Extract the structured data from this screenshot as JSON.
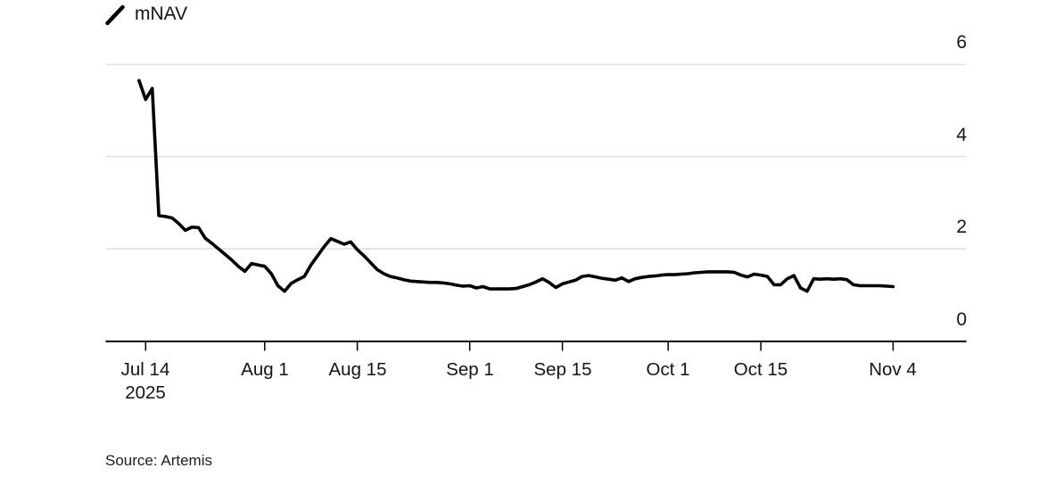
{
  "legend": {
    "series_label": "mNAV"
  },
  "source": {
    "text": "Source: Artemis"
  },
  "colors": {
    "line": "#000000",
    "grid": "#e0e0e0",
    "axis": "#000000",
    "text": "#141414"
  },
  "chart_data": {
    "type": "line",
    "title": "",
    "ylabel": "",
    "xlabel": "",
    "y_axis_side": "right",
    "legend_position": "top-left",
    "grid": "horizontal",
    "ylim": [
      0,
      6.2
    ],
    "x_range": [
      "2025-07-13",
      "2025-11-04"
    ],
    "y_ticks": [
      0,
      2,
      4,
      6
    ],
    "x_ticks": [
      {
        "date": "2025-07-14",
        "label": "Jul 14",
        "sublabel": "2025"
      },
      {
        "date": "2025-08-01",
        "label": "Aug 1"
      },
      {
        "date": "2025-08-15",
        "label": "Aug 15"
      },
      {
        "date": "2025-09-01",
        "label": "Sep 1"
      },
      {
        "date": "2025-09-15",
        "label": "Sep 15"
      },
      {
        "date": "2025-10-01",
        "label": "Oct 1"
      },
      {
        "date": "2025-10-15",
        "label": "Oct 15"
      },
      {
        "date": "2025-11-04",
        "label": "Nov 4"
      }
    ],
    "series": [
      {
        "name": "mNAV",
        "color": "#000000",
        "points": [
          [
            "2025-07-13",
            5.65
          ],
          [
            "2025-07-14",
            5.24
          ],
          [
            "2025-07-15",
            5.48
          ],
          [
            "2025-07-16",
            2.72
          ],
          [
            "2025-07-17",
            2.7
          ],
          [
            "2025-07-18",
            2.67
          ],
          [
            "2025-07-19",
            2.55
          ],
          [
            "2025-07-20",
            2.4
          ],
          [
            "2025-07-21",
            2.47
          ],
          [
            "2025-07-22",
            2.46
          ],
          [
            "2025-07-23",
            2.23
          ],
          [
            "2025-07-24",
            2.12
          ],
          [
            "2025-07-25",
            2.0
          ],
          [
            "2025-07-26",
            1.88
          ],
          [
            "2025-07-27",
            1.76
          ],
          [
            "2025-07-28",
            1.62
          ],
          [
            "2025-07-29",
            1.51
          ],
          [
            "2025-07-30",
            1.68
          ],
          [
            "2025-07-31",
            1.65
          ],
          [
            "2025-08-01",
            1.62
          ],
          [
            "2025-08-02",
            1.46
          ],
          [
            "2025-08-03",
            1.2
          ],
          [
            "2025-08-04",
            1.08
          ],
          [
            "2025-08-05",
            1.25
          ],
          [
            "2025-08-06",
            1.33
          ],
          [
            "2025-08-07",
            1.4
          ],
          [
            "2025-08-08",
            1.65
          ],
          [
            "2025-08-09",
            1.85
          ],
          [
            "2025-08-10",
            2.05
          ],
          [
            "2025-08-11",
            2.22
          ],
          [
            "2025-08-12",
            2.16
          ],
          [
            "2025-08-13",
            2.1
          ],
          [
            "2025-08-14",
            2.15
          ],
          [
            "2025-08-15",
            1.98
          ],
          [
            "2025-08-16",
            1.85
          ],
          [
            "2025-08-17",
            1.7
          ],
          [
            "2025-08-18",
            1.55
          ],
          [
            "2025-08-19",
            1.46
          ],
          [
            "2025-08-20",
            1.4
          ],
          [
            "2025-08-21",
            1.37
          ],
          [
            "2025-08-22",
            1.33
          ],
          [
            "2025-08-23",
            1.3
          ],
          [
            "2025-08-24",
            1.29
          ],
          [
            "2025-08-25",
            1.28
          ],
          [
            "2025-08-26",
            1.27
          ],
          [
            "2025-08-27",
            1.27
          ],
          [
            "2025-08-28",
            1.26
          ],
          [
            "2025-08-29",
            1.24
          ],
          [
            "2025-08-30",
            1.21
          ],
          [
            "2025-08-31",
            1.19
          ],
          [
            "2025-09-01",
            1.2
          ],
          [
            "2025-09-02",
            1.15
          ],
          [
            "2025-09-03",
            1.18
          ],
          [
            "2025-09-04",
            1.13
          ],
          [
            "2025-09-05",
            1.13
          ],
          [
            "2025-09-06",
            1.13
          ],
          [
            "2025-09-07",
            1.13
          ],
          [
            "2025-09-08",
            1.14
          ],
          [
            "2025-09-09",
            1.18
          ],
          [
            "2025-09-10",
            1.22
          ],
          [
            "2025-09-11",
            1.28
          ],
          [
            "2025-09-12",
            1.35
          ],
          [
            "2025-09-13",
            1.27
          ],
          [
            "2025-09-14",
            1.16
          ],
          [
            "2025-09-15",
            1.24
          ],
          [
            "2025-09-16",
            1.28
          ],
          [
            "2025-09-17",
            1.32
          ],
          [
            "2025-09-18",
            1.4
          ],
          [
            "2025-09-19",
            1.42
          ],
          [
            "2025-09-20",
            1.39
          ],
          [
            "2025-09-21",
            1.36
          ],
          [
            "2025-09-22",
            1.34
          ],
          [
            "2025-09-23",
            1.32
          ],
          [
            "2025-09-24",
            1.37
          ],
          [
            "2025-09-25",
            1.29
          ],
          [
            "2025-09-26",
            1.35
          ],
          [
            "2025-09-27",
            1.38
          ],
          [
            "2025-09-28",
            1.4
          ],
          [
            "2025-09-29",
            1.41
          ],
          [
            "2025-09-30",
            1.43
          ],
          [
            "2025-10-01",
            1.44
          ],
          [
            "2025-10-02",
            1.44
          ],
          [
            "2025-10-03",
            1.45
          ],
          [
            "2025-10-04",
            1.46
          ],
          [
            "2025-10-05",
            1.48
          ],
          [
            "2025-10-06",
            1.49
          ],
          [
            "2025-10-07",
            1.5
          ],
          [
            "2025-10-08",
            1.5
          ],
          [
            "2025-10-09",
            1.5
          ],
          [
            "2025-10-10",
            1.5
          ],
          [
            "2025-10-11",
            1.49
          ],
          [
            "2025-10-12",
            1.43
          ],
          [
            "2025-10-13",
            1.39
          ],
          [
            "2025-10-14",
            1.45
          ],
          [
            "2025-10-15",
            1.43
          ],
          [
            "2025-10-16",
            1.4
          ],
          [
            "2025-10-17",
            1.22
          ],
          [
            "2025-10-18",
            1.22
          ],
          [
            "2025-10-19",
            1.35
          ],
          [
            "2025-10-20",
            1.42
          ],
          [
            "2025-10-21",
            1.15
          ],
          [
            "2025-10-22",
            1.08
          ],
          [
            "2025-10-23",
            1.35
          ],
          [
            "2025-10-24",
            1.34
          ],
          [
            "2025-10-25",
            1.35
          ],
          [
            "2025-10-26",
            1.34
          ],
          [
            "2025-10-27",
            1.35
          ],
          [
            "2025-10-28",
            1.33
          ],
          [
            "2025-10-29",
            1.22
          ],
          [
            "2025-10-30",
            1.2
          ],
          [
            "2025-10-31",
            1.2
          ],
          [
            "2025-11-01",
            1.2
          ],
          [
            "2025-11-02",
            1.2
          ],
          [
            "2025-11-03",
            1.19
          ],
          [
            "2025-11-04",
            1.18
          ]
        ]
      }
    ]
  }
}
